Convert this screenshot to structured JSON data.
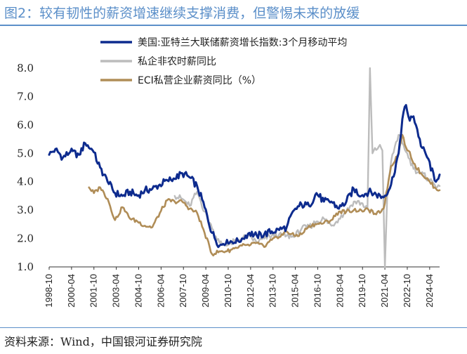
{
  "title": "图2：较有韧性的薪资增速继续支撑消费，但警惕未来的放缓",
  "source": "资料来源：Wind，中国银河证券研究院",
  "chart_data": {
    "type": "line",
    "ylim": [
      1.0,
      8.0
    ],
    "yticks": [
      1.0,
      2.0,
      3.0,
      4.0,
      5.0,
      6.0,
      7.0,
      8.0
    ],
    "ytick_labels": [
      "1.0",
      "2.0",
      "3.0",
      "4.0",
      "5.0",
      "6.0",
      "7.0",
      "8.0"
    ],
    "x_range": [
      "1998-10",
      "2024-12"
    ],
    "xtick_labels": [
      "1998-10",
      "2000-04",
      "2001-10",
      "2003-04",
      "2004-10",
      "2006-04",
      "2007-10",
      "2009-04",
      "2010-10",
      "2012-04",
      "2013-10",
      "2015-04",
      "2016-10",
      "2018-04",
      "2019-10",
      "2021-04",
      "2022-10",
      "2024-04"
    ],
    "legend_position": "top-right",
    "series": [
      {
        "name": "美国:亚特兰大联储薪资增长指数:3个月移动平均",
        "color": "#0d2b8e",
        "points": [
          [
            "1998-10",
            4.95
          ],
          [
            "1999-03",
            5.15
          ],
          [
            "1999-09",
            4.85
          ],
          [
            "2000-03",
            5.05
          ],
          [
            "2000-10",
            4.95
          ],
          [
            "2001-03",
            5.35
          ],
          [
            "2001-09",
            5.1
          ],
          [
            "2002-03",
            4.5
          ],
          [
            "2002-09",
            4.0
          ],
          [
            "2003-03",
            3.6
          ],
          [
            "2003-09",
            3.5
          ],
          [
            "2004-03",
            3.65
          ],
          [
            "2004-09",
            3.5
          ],
          [
            "2005-03",
            3.7
          ],
          [
            "2005-09",
            3.75
          ],
          [
            "2006-03",
            3.9
          ],
          [
            "2006-09",
            4.05
          ],
          [
            "2007-03",
            4.1
          ],
          [
            "2007-09",
            4.3
          ],
          [
            "2008-03",
            4.15
          ],
          [
            "2008-09",
            3.85
          ],
          [
            "2009-03",
            3.1
          ],
          [
            "2009-09",
            2.2
          ],
          [
            "2010-03",
            1.75
          ],
          [
            "2010-09",
            1.95
          ],
          [
            "2011-03",
            1.85
          ],
          [
            "2011-09",
            2.0
          ],
          [
            "2012-03",
            2.2
          ],
          [
            "2012-09",
            2.1
          ],
          [
            "2013-03",
            2.15
          ],
          [
            "2013-09",
            2.25
          ],
          [
            "2014-03",
            2.3
          ],
          [
            "2014-09",
            2.4
          ],
          [
            "2015-03",
            3.0
          ],
          [
            "2015-09",
            3.2
          ],
          [
            "2016-03",
            3.15
          ],
          [
            "2016-09",
            3.6
          ],
          [
            "2017-03",
            3.3
          ],
          [
            "2017-09",
            3.3
          ],
          [
            "2018-03",
            3.05
          ],
          [
            "2018-09",
            3.3
          ],
          [
            "2019-03",
            3.75
          ],
          [
            "2019-09",
            3.5
          ],
          [
            "2020-03",
            3.65
          ],
          [
            "2020-09",
            3.55
          ],
          [
            "2021-03",
            3.45
          ],
          [
            "2021-09",
            3.9
          ],
          [
            "2022-03",
            5.0
          ],
          [
            "2022-06",
            6.2
          ],
          [
            "2022-09",
            6.7
          ],
          [
            "2022-12",
            6.15
          ],
          [
            "2023-03",
            6.3
          ],
          [
            "2023-06",
            5.85
          ],
          [
            "2023-09",
            5.25
          ],
          [
            "2024-03",
            4.8
          ],
          [
            "2024-08",
            4.05
          ],
          [
            "2024-12",
            4.25
          ]
        ]
      },
      {
        "name": "私企非农时薪同比",
        "color": "#bcbcbc",
        "points": [
          [
            "2007-03",
            3.5
          ],
          [
            "2007-09",
            3.4
          ],
          [
            "2008-03",
            3.15
          ],
          [
            "2008-09",
            3.65
          ],
          [
            "2009-03",
            2.95
          ],
          [
            "2009-09",
            2.35
          ],
          [
            "2010-03",
            1.85
          ],
          [
            "2010-09",
            1.75
          ],
          [
            "2011-03",
            1.9
          ],
          [
            "2011-09",
            2.0
          ],
          [
            "2012-03",
            2.1
          ],
          [
            "2012-09",
            1.85
          ],
          [
            "2013-03",
            2.0
          ],
          [
            "2013-09",
            2.1
          ],
          [
            "2014-03",
            2.15
          ],
          [
            "2014-09",
            2.1
          ],
          [
            "2015-03",
            2.05
          ],
          [
            "2015-09",
            2.35
          ],
          [
            "2016-03",
            2.4
          ],
          [
            "2016-09",
            2.6
          ],
          [
            "2017-03",
            2.7
          ],
          [
            "2017-09",
            2.45
          ],
          [
            "2018-03",
            2.7
          ],
          [
            "2018-09",
            2.95
          ],
          [
            "2019-03",
            3.3
          ],
          [
            "2019-09",
            3.25
          ],
          [
            "2020-02",
            3.05
          ],
          [
            "2020-04",
            8.0
          ],
          [
            "2020-06",
            5.0
          ],
          [
            "2020-12",
            5.3
          ],
          [
            "2021-02",
            5.1
          ],
          [
            "2021-04",
            1.0
          ],
          [
            "2021-06",
            3.7
          ],
          [
            "2021-09",
            4.7
          ],
          [
            "2021-12",
            5.25
          ],
          [
            "2022-03",
            5.65
          ],
          [
            "2022-06",
            5.35
          ],
          [
            "2022-09",
            5.05
          ],
          [
            "2022-12",
            4.8
          ],
          [
            "2023-03",
            4.45
          ],
          [
            "2023-09",
            4.3
          ],
          [
            "2024-03",
            4.1
          ],
          [
            "2024-08",
            3.9
          ],
          [
            "2024-12",
            3.85
          ]
        ]
      },
      {
        "name": "ECI私营企业薪资同比（%）",
        "color": "#b08d57",
        "points": [
          [
            "2001-06",
            3.8
          ],
          [
            "2001-10",
            3.6
          ],
          [
            "2002-03",
            3.8
          ],
          [
            "2002-09",
            3.4
          ],
          [
            "2003-03",
            2.65
          ],
          [
            "2003-09",
            3.1
          ],
          [
            "2004-03",
            2.7
          ],
          [
            "2004-09",
            2.6
          ],
          [
            "2005-03",
            2.45
          ],
          [
            "2005-09",
            2.4
          ],
          [
            "2006-03",
            2.9
          ],
          [
            "2006-09",
            3.35
          ],
          [
            "2007-03",
            3.3
          ],
          [
            "2007-09",
            3.3
          ],
          [
            "2008-03",
            3.05
          ],
          [
            "2008-09",
            2.9
          ],
          [
            "2009-03",
            2.2
          ],
          [
            "2009-09",
            1.45
          ],
          [
            "2010-03",
            1.55
          ],
          [
            "2010-09",
            1.55
          ],
          [
            "2011-03",
            1.65
          ],
          [
            "2011-09",
            1.75
          ],
          [
            "2012-03",
            1.75
          ],
          [
            "2012-09",
            1.85
          ],
          [
            "2013-03",
            1.7
          ],
          [
            "2013-09",
            1.95
          ],
          [
            "2014-03",
            2.05
          ],
          [
            "2014-09",
            2.25
          ],
          [
            "2015-03",
            2.1
          ],
          [
            "2015-09",
            2.15
          ],
          [
            "2016-03",
            2.45
          ],
          [
            "2016-09",
            2.5
          ],
          [
            "2017-03",
            2.55
          ],
          [
            "2017-09",
            2.65
          ],
          [
            "2018-03",
            2.95
          ],
          [
            "2018-09",
            2.95
          ],
          [
            "2019-03",
            3.0
          ],
          [
            "2019-09",
            3.0
          ],
          [
            "2020-03",
            3.0
          ],
          [
            "2020-09",
            2.85
          ],
          [
            "2021-03",
            3.05
          ],
          [
            "2021-09",
            4.55
          ],
          [
            "2022-03",
            5.0
          ],
          [
            "2022-06",
            5.65
          ],
          [
            "2022-09",
            5.2
          ],
          [
            "2022-12",
            5.05
          ],
          [
            "2023-03",
            4.65
          ],
          [
            "2023-09",
            4.3
          ],
          [
            "2024-03",
            4.05
          ],
          [
            "2024-08",
            3.8
          ],
          [
            "2024-12",
            3.7
          ]
        ]
      }
    ]
  }
}
